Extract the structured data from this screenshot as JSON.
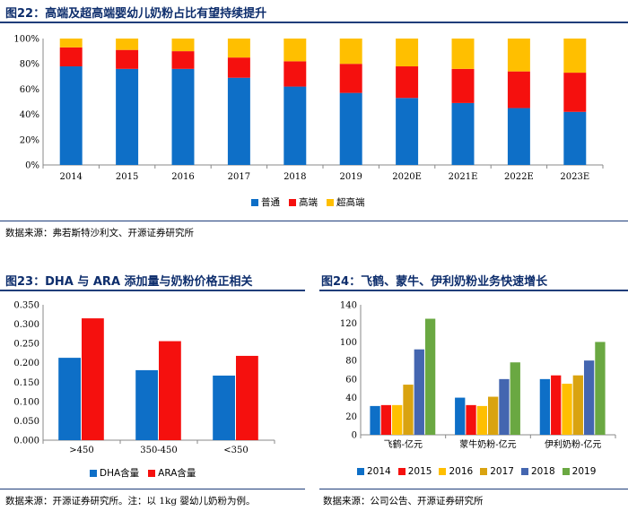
{
  "fig22": {
    "title": "图22：高端及超高端婴幼儿奶粉占比有望持续提升",
    "source": "数据来源：弗若斯特沙利文、开源证券研究所"
  },
  "fig23": {
    "title": "图23：DHA 与 ARA 添加量与奶粉价格正相关",
    "source": "数据来源：开源证券研究所。注：以 1kg 婴幼儿奶粉为例。"
  },
  "fig24": {
    "title": "图24：飞鹤、蒙牛、伊利奶粉业务快速增长",
    "source": "数据来源：公司公告、开源证券研究所"
  },
  "colors": {
    "blue": "#0e6fc7",
    "red": "#f5100e",
    "yellow": "#ffbf00",
    "darkblue": "#4466b0",
    "green": "#6aa842",
    "axis": "#888888"
  },
  "chart_data": [
    {
      "type": "bar",
      "stacked": true,
      "title": "高端及超高端婴幼儿奶粉占比有望持续提升",
      "categories": [
        "2014",
        "2015",
        "2016",
        "2017",
        "2018",
        "2019",
        "2020E",
        "2021E",
        "2022E",
        "2023E"
      ],
      "series": [
        {
          "name": "普通",
          "color": "#0e6fc7",
          "values": [
            78,
            76,
            76,
            69,
            62,
            57,
            53,
            49,
            45,
            42
          ]
        },
        {
          "name": "高端",
          "color": "#f5100e",
          "values": [
            15,
            15,
            14,
            16,
            20,
            23,
            25,
            27,
            29,
            31
          ]
        },
        {
          "name": "超高端",
          "color": "#ffbf00",
          "values": [
            7,
            9,
            10,
            15,
            18,
            20,
            22,
            24,
            26,
            27
          ]
        }
      ],
      "ylim": [
        0,
        100
      ],
      "yticks": [
        "0%",
        "20%",
        "40%",
        "60%",
        "80%",
        "100%"
      ],
      "legend_position": "bottom"
    },
    {
      "type": "bar",
      "title": "DHA 与 ARA 添加量与奶粉价格正相关",
      "categories": [
        ">450",
        "350-450",
        "<350"
      ],
      "series": [
        {
          "name": "DHA含量",
          "color": "#0e6fc7",
          "values": [
            0.213,
            0.181,
            0.167
          ]
        },
        {
          "name": "ARA含量",
          "color": "#f5100e",
          "values": [
            0.315,
            0.256,
            0.218
          ]
        }
      ],
      "ylim": [
        0,
        0.35
      ],
      "yticks": [
        "0.000",
        "0.050",
        "0.100",
        "0.150",
        "0.200",
        "0.250",
        "0.300",
        "0.350"
      ],
      "legend_position": "bottom"
    },
    {
      "type": "bar",
      "title": "飞鹤、蒙牛、伊利奶粉业务快速增长",
      "categories": [
        "飞鹤-亿元",
        "蒙牛奶粉-亿元",
        "伊利奶粉-亿元"
      ],
      "series": [
        {
          "name": "2014",
          "color": "#0e6fc7",
          "values": [
            31,
            40,
            60
          ]
        },
        {
          "name": "2015",
          "color": "#f5100e",
          "values": [
            32,
            32,
            64
          ]
        },
        {
          "name": "2016",
          "color": "#ffbf00",
          "values": [
            32,
            31,
            55
          ]
        },
        {
          "name": "2017",
          "color": "#d9a310",
          "values": [
            54,
            41,
            64
          ]
        },
        {
          "name": "2018",
          "color": "#4466b0",
          "values": [
            92,
            60,
            80
          ]
        },
        {
          "name": "2019",
          "color": "#6aa842",
          "values": [
            125,
            78,
            100
          ]
        }
      ],
      "ylim": [
        0,
        140
      ],
      "yticks": [
        "0",
        "20",
        "40",
        "60",
        "80",
        "100",
        "120",
        "140"
      ],
      "legend_position": "bottom"
    }
  ]
}
